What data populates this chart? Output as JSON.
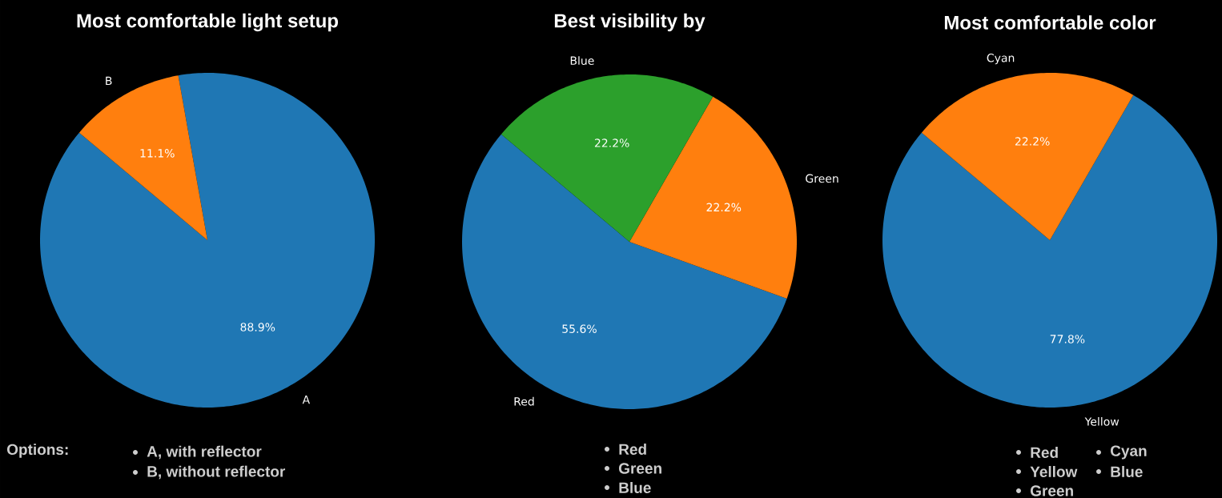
{
  "chart_data": [
    {
      "type": "pie",
      "title": "Most comfortable light setup",
      "categories": [
        "A",
        "B"
      ],
      "values": [
        88.9,
        11.1
      ],
      "colors": [
        "#1f77b4",
        "#ff7f0e"
      ],
      "value_labels": [
        "88.9%",
        "11.1%"
      ],
      "annotations": [
        "Options:",
        "A, with reflector",
        "B, without reflector"
      ]
    },
    {
      "type": "pie",
      "title": "Best visibility by",
      "categories": [
        "Red",
        "Green",
        "Blue"
      ],
      "values": [
        55.6,
        22.2,
        22.2
      ],
      "colors": [
        "#1f77b4",
        "#ff7f0e",
        "#2ca02c"
      ],
      "value_labels": [
        "55.6%",
        "22.2%",
        "22.2%"
      ],
      "annotations": [
        "Red",
        "Green",
        "Blue"
      ]
    },
    {
      "type": "pie",
      "title": "Most comfortable color",
      "categories": [
        "Yellow",
        "Cyan"
      ],
      "values": [
        77.8,
        22.2
      ],
      "colors": [
        "#1f77b4",
        "#ff7f0e"
      ],
      "value_labels": [
        "77.8%",
        "22.2%"
      ],
      "annotations": [
        "Red",
        "Yellow",
        "Green",
        "Cyan",
        "Blue"
      ]
    }
  ]
}
